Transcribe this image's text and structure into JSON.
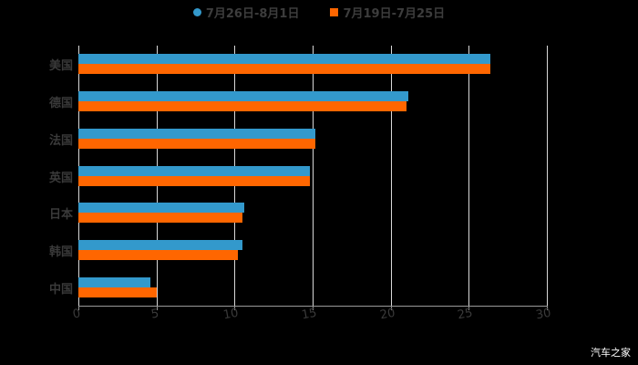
{
  "chart_data": {
    "type": "bar",
    "orientation": "horizontal",
    "title": "",
    "categories": [
      "美国",
      "德国",
      "法国",
      "英国",
      "日本",
      "韩国",
      "中国"
    ],
    "series": [
      {
        "name": "7月26日-8月1日",
        "color": "#3399cc",
        "marker": "circle",
        "values": [
          26.4,
          21.1,
          15.2,
          14.8,
          10.6,
          10.5,
          4.6
        ]
      },
      {
        "name": "7月19日-7月25日",
        "color": "#ff6600",
        "marker": "square",
        "values": [
          26.4,
          21.0,
          15.2,
          14.8,
          10.5,
          10.2,
          5.0
        ]
      }
    ],
    "xlabel": "",
    "ylabel": "",
    "xlim": [
      0,
      30
    ],
    "xticks": [
      "0",
      "5",
      "10",
      "15",
      "20",
      "25",
      "30"
    ],
    "grid": true,
    "legend_position": "top"
  },
  "legend": {
    "items": [
      {
        "label": "7月26日-8月1日",
        "color": "#3399cc"
      },
      {
        "label": "7月19日-7月25日",
        "color": "#ff6600"
      }
    ]
  },
  "watermark": "汽车之家"
}
